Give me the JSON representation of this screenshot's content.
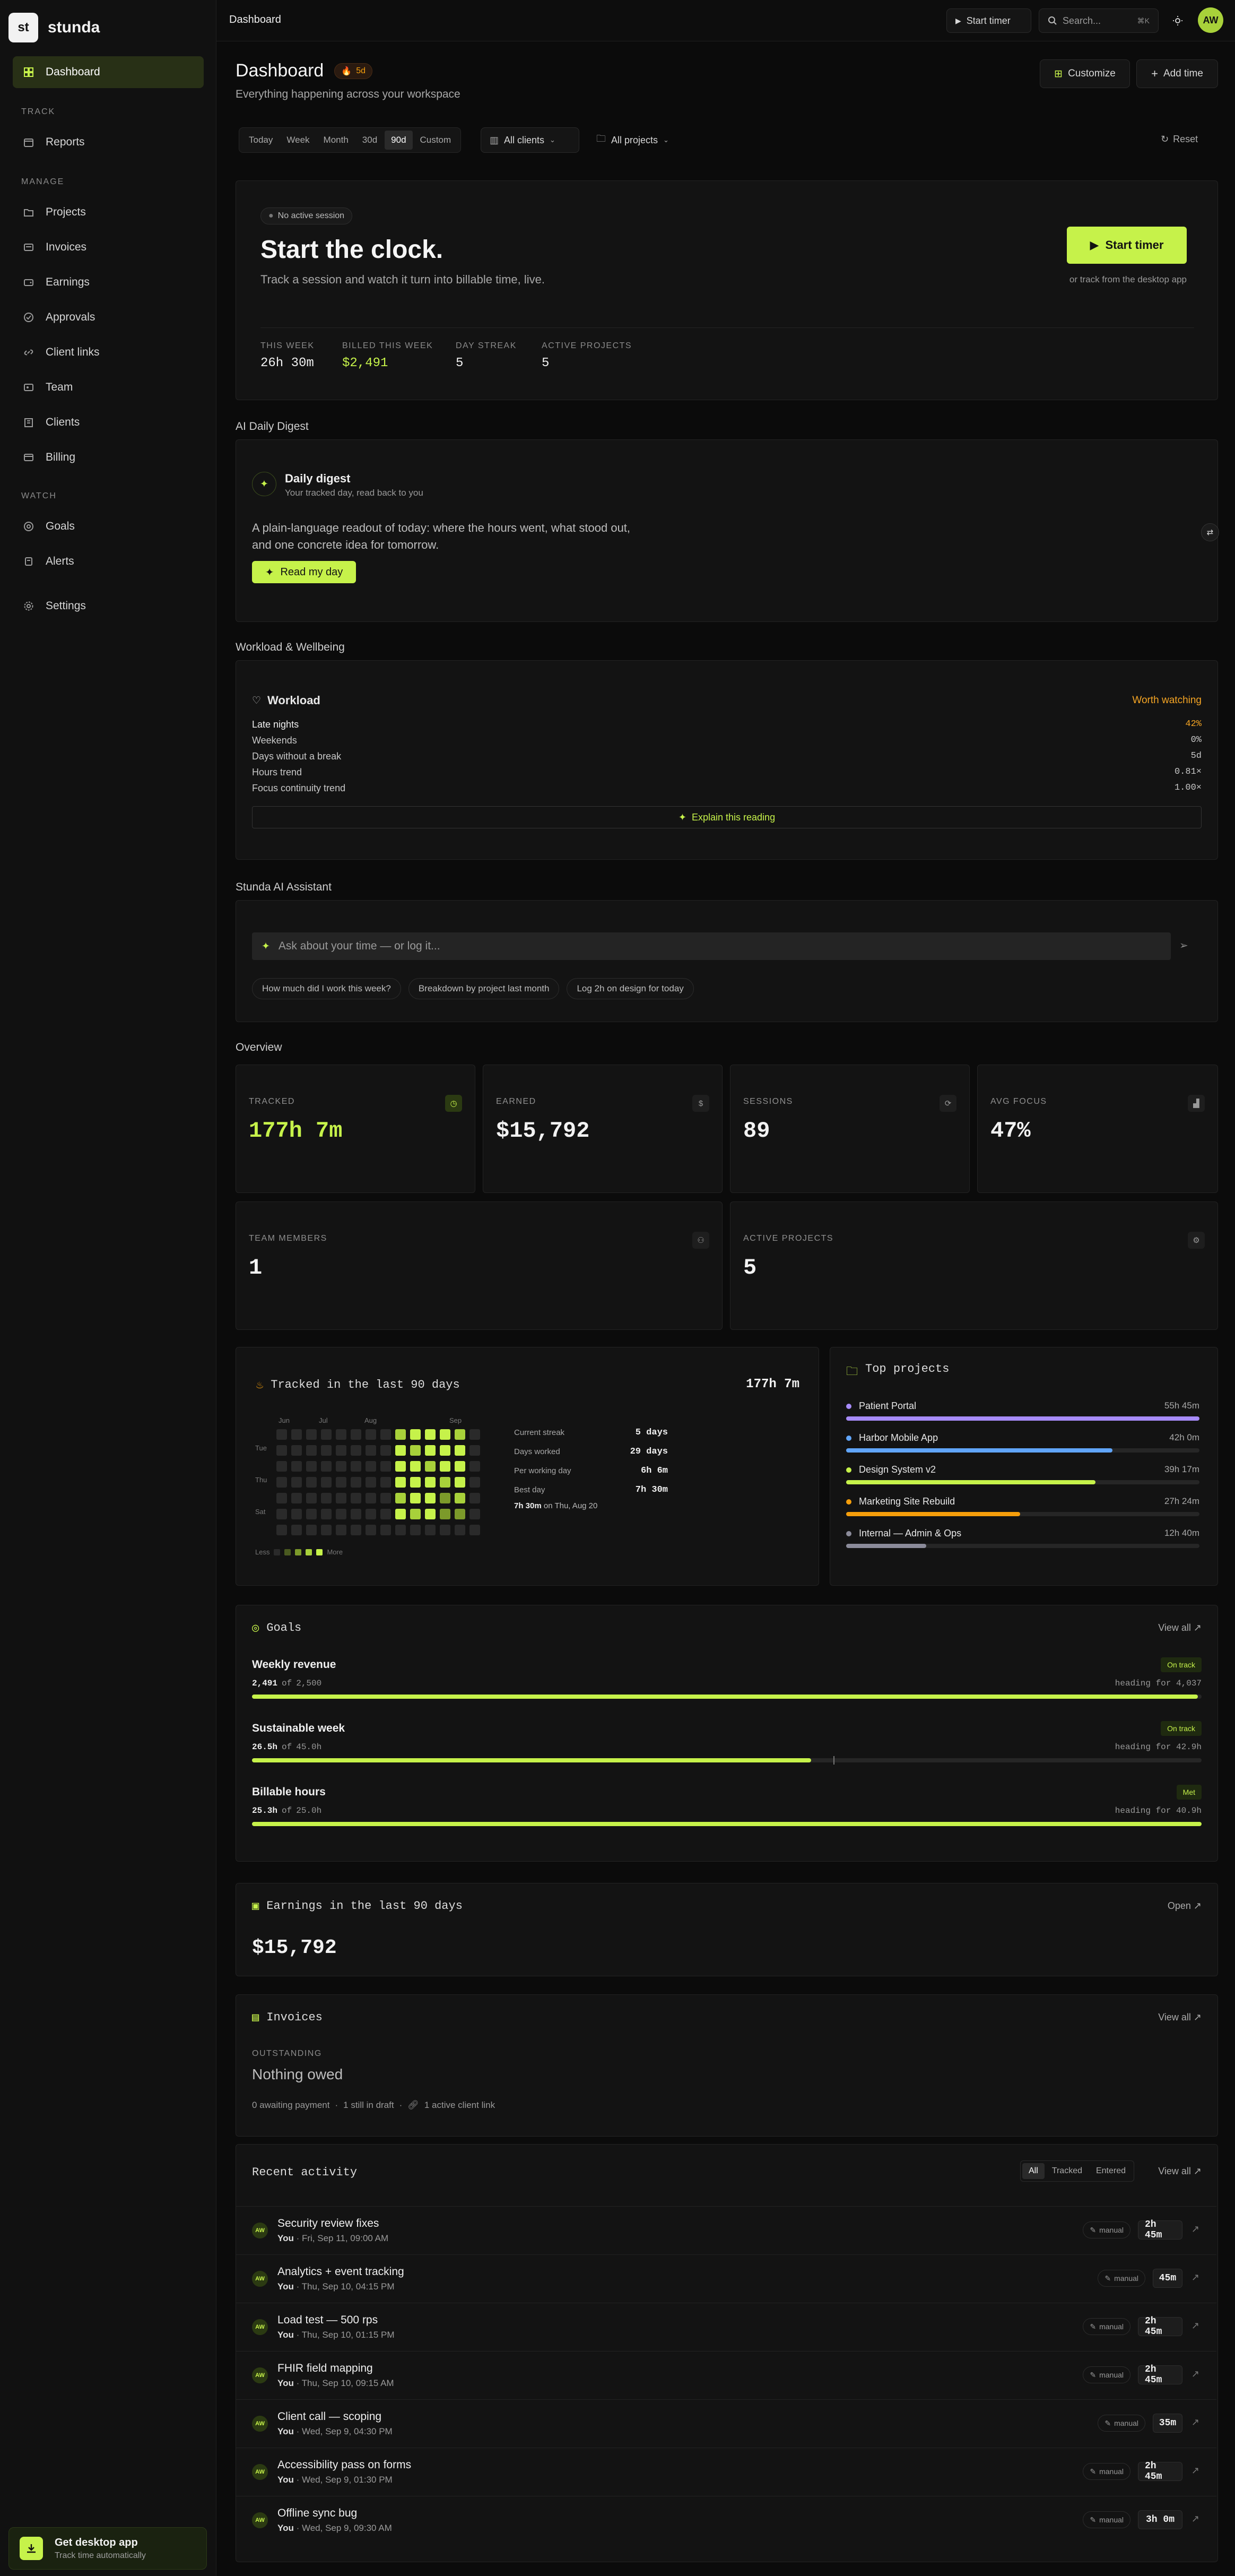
{
  "brand": {
    "logo": "st",
    "name": "stunda"
  },
  "sidebar": {
    "dashboard": "Dashboard",
    "track_label": "TRACK",
    "reports": "Reports",
    "manage_label": "MANAGE",
    "projects": "Projects",
    "invoices": "Invoices",
    "earnings": "Earnings",
    "approvals": "Approvals",
    "client_links": "Client links",
    "team": "Team",
    "clients": "Clients",
    "billing": "Billing",
    "watch_label": "WATCH",
    "goals": "Goals",
    "alerts": "Alerts",
    "settings": "Settings",
    "desktop_title": "Get desktop app",
    "desktop_sub": "Track time automatically"
  },
  "topbar": {
    "breadcrumb": "Dashboard",
    "start_timer": "Start timer",
    "search_placeholder": "Search...",
    "search_kbd": "⌘K",
    "avatar": "AW"
  },
  "header": {
    "title": "Dashboard",
    "streak_badge": "5d",
    "subtitle": "Everything happening across your workspace",
    "customize": "Customize",
    "add_time": "Add time"
  },
  "filters": {
    "ranges": [
      "Today",
      "Week",
      "Month",
      "30d",
      "90d",
      "Custom"
    ],
    "active_range": "90d",
    "clients": "All clients",
    "projects": "All projects",
    "reset": "Reset"
  },
  "hero": {
    "session_pill": "No active session",
    "title": "Start the clock.",
    "desc": "Track a session and watch it turn into billable time, live.",
    "start_btn": "Start timer",
    "desktop_hint": "or track from the desktop app",
    "stats": [
      {
        "label": "THIS WEEK",
        "value": "26h 30m"
      },
      {
        "label": "BILLED THIS WEEK",
        "value": "$2,491"
      },
      {
        "label": "DAY STREAK",
        "value": "5"
      },
      {
        "label": "ACTIVE PROJECTS",
        "value": "5"
      }
    ]
  },
  "digest": {
    "section": "AI Daily Digest",
    "title": "Daily digest",
    "subtitle": "Your tracked day, read back to you",
    "body": "A plain-language readout of today: where the hours went, what stood out, and one concrete idea for tomorrow.",
    "button": "Read my day"
  },
  "workload": {
    "section": "Workload & Wellbeing",
    "title": "Workload",
    "status": "Worth watching",
    "rows": [
      {
        "label": "Late nights",
        "value": "42%"
      },
      {
        "label": "Weekends",
        "value": "0%"
      },
      {
        "label": "Days without a break",
        "value": "5d"
      },
      {
        "label": "Hours trend",
        "value": "0.81×"
      },
      {
        "label": "Focus continuity trend",
        "value": "1.00×"
      }
    ],
    "explain": "Explain this reading"
  },
  "assistant": {
    "section": "Stunda AI Assistant",
    "placeholder": "Ask about your time — or log it...",
    "suggestions": [
      "How much did I work this week?",
      "Breakdown by project last month",
      "Log 2h on design for today"
    ]
  },
  "overview": {
    "section": "Overview",
    "kpis": [
      {
        "label": "TRACKED",
        "value": "177h 7m",
        "icon": "clock-icon"
      },
      {
        "label": "EARNED",
        "value": "$15,792",
        "icon": "dollar-icon"
      },
      {
        "label": "SESSIONS",
        "value": "89",
        "icon": "sessions-icon"
      },
      {
        "label": "AVG FOCUS",
        "value": "47%",
        "icon": "chart-icon"
      },
      {
        "label": "TEAM MEMBERS",
        "value": "1",
        "icon": "users-icon"
      },
      {
        "label": "ACTIVE PROJECTS",
        "value": "5",
        "icon": "gear-icon"
      }
    ]
  },
  "tracked90": {
    "title": "Tracked in the last 90 days",
    "total": "177h 7m",
    "months": [
      "Jun",
      "Jul",
      "Aug",
      "Sep"
    ],
    "days": [
      "Tue",
      "Thu",
      "Sat"
    ],
    "less": "Less",
    "more": "More",
    "stats": [
      {
        "label": "Current streak",
        "value": "5 days"
      },
      {
        "label": "Days worked",
        "value": "29 days"
      },
      {
        "label": "Per working day",
        "value": "6h 6m"
      },
      {
        "label": "Best day",
        "value": "7h 30m"
      }
    ],
    "best_value": "7h 30m",
    "best_date": "on Thu, Aug 20"
  },
  "top_projects": {
    "title": "Top projects",
    "items": [
      {
        "name": "Patient Portal",
        "time": "55h 45m",
        "color": "#a78bfa",
        "share": 1.0
      },
      {
        "name": "Harbor Mobile App",
        "time": "42h 0m",
        "color": "#60a5fa",
        "share": 0.754
      },
      {
        "name": "Design System v2",
        "time": "39h 17m",
        "color": "#c6f24a",
        "share": 0.705
      },
      {
        "name": "Marketing Site Rebuild",
        "time": "27h 24m",
        "color": "#f59e0b",
        "share": 0.492
      },
      {
        "name": "Internal — Admin & Ops",
        "time": "12h 40m",
        "color": "#8b8b9a",
        "share": 0.227
      }
    ]
  },
  "goals": {
    "title": "Goals",
    "view_all": "View all ↗",
    "items": [
      {
        "name": "Weekly revenue",
        "status": "On track",
        "current": "2,491",
        "of": "of",
        "target": "2,500",
        "heading": "heading for 4,037",
        "progress": 0.996
      },
      {
        "name": "Sustainable week",
        "status": "On track",
        "current": "26.5h",
        "of": "of",
        "target": "45.0h",
        "heading": "heading for 42.9h",
        "progress": 0.589
      },
      {
        "name": "Billable hours",
        "status": "Met",
        "current": "25.3h",
        "of": "of",
        "target": "25.0h",
        "heading": "heading for 40.9h",
        "progress": 1.0
      }
    ]
  },
  "earnings": {
    "title": "Earnings in the last 90 days",
    "open": "Open ↗",
    "value": "$15,792"
  },
  "invoices": {
    "title": "Invoices",
    "view_all": "View all ↗",
    "outstanding_label": "OUTSTANDING",
    "outstanding_value": "Nothing owed",
    "meta1": "0 awaiting payment",
    "meta2": "1 still in draft",
    "meta3": "1 active client link"
  },
  "activity": {
    "title": "Recent activity",
    "tabs": [
      "All",
      "Tracked",
      "Entered"
    ],
    "view_all": "View all ↗",
    "manual_label": "manual",
    "items": [
      {
        "avatar": "AW",
        "title": "Security review fixes",
        "who": "You",
        "when": "· Fri, Sep 11, 09:00 AM",
        "duration": "2h 45m"
      },
      {
        "avatar": "AW",
        "title": "Analytics + event tracking",
        "who": "You",
        "when": "· Thu, Sep 10, 04:15 PM",
        "duration": "45m"
      },
      {
        "avatar": "AW",
        "title": "Load test — 500 rps",
        "who": "You",
        "when": "· Thu, Sep 10, 01:15 PM",
        "duration": "2h 45m"
      },
      {
        "avatar": "AW",
        "title": "FHIR field mapping",
        "who": "You",
        "when": "· Thu, Sep 10, 09:15 AM",
        "duration": "2h 45m"
      },
      {
        "avatar": "AW",
        "title": "Client call — scoping",
        "who": "You",
        "when": "· Wed, Sep 9, 04:30 PM",
        "duration": "35m"
      },
      {
        "avatar": "AW",
        "title": "Accessibility pass on forms",
        "who": "You",
        "when": "· Wed, Sep 9, 01:30 PM",
        "duration": "2h 45m"
      },
      {
        "avatar": "AW",
        "title": "Offline sync bug",
        "who": "You",
        "when": "· Wed, Sep 9, 09:30 AM",
        "duration": "3h 0m"
      }
    ]
  },
  "colors": {
    "accent": "#c6f24a",
    "warning": "#f5a524",
    "background": "#0b0b0b",
    "panel": "#131313"
  }
}
